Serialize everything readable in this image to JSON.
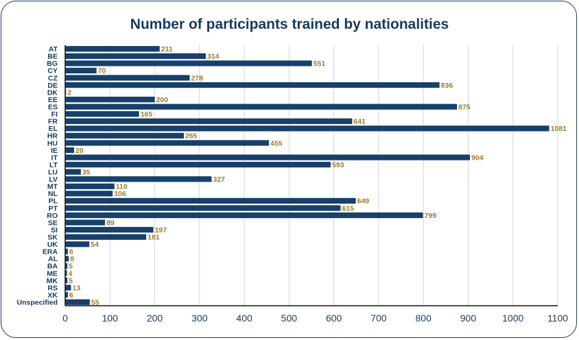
{
  "chart_data": {
    "type": "bar",
    "orientation": "horizontal",
    "title": "Number of participants trained by nationalities",
    "xlabel": "",
    "ylabel": "",
    "xlim": [
      0,
      1100
    ],
    "xticks": [
      0,
      100,
      200,
      300,
      400,
      500,
      600,
      700,
      800,
      900,
      1000,
      1100
    ],
    "grid": "vertical",
    "legend": "none",
    "categories": [
      "AT",
      "BE",
      "BG",
      "CY",
      "CZ",
      "DE",
      "DK",
      "EE",
      "ES",
      "FI",
      "FR",
      "EL",
      "HR",
      "HU",
      "IE",
      "IT",
      "LT",
      "LU",
      "LV",
      "MT",
      "NL",
      "PL",
      "PT",
      "RO",
      "SE",
      "SI",
      "SK",
      "UK",
      "ERA",
      "AL",
      "BA",
      "ME",
      "MK",
      "RS",
      "XK",
      "Unspecified"
    ],
    "values": [
      211,
      314,
      551,
      70,
      278,
      836,
      2,
      200,
      875,
      165,
      641,
      1081,
      265,
      455,
      20,
      904,
      593,
      35,
      327,
      110,
      106,
      649,
      615,
      799,
      89,
      197,
      181,
      54,
      6,
      8,
      5,
      4,
      5,
      13,
      6,
      55
    ],
    "colors": {
      "bar": "#17406a",
      "value_label": "#9a7a2e",
      "text": "#17395e",
      "grid": "#d4d4d4"
    }
  }
}
